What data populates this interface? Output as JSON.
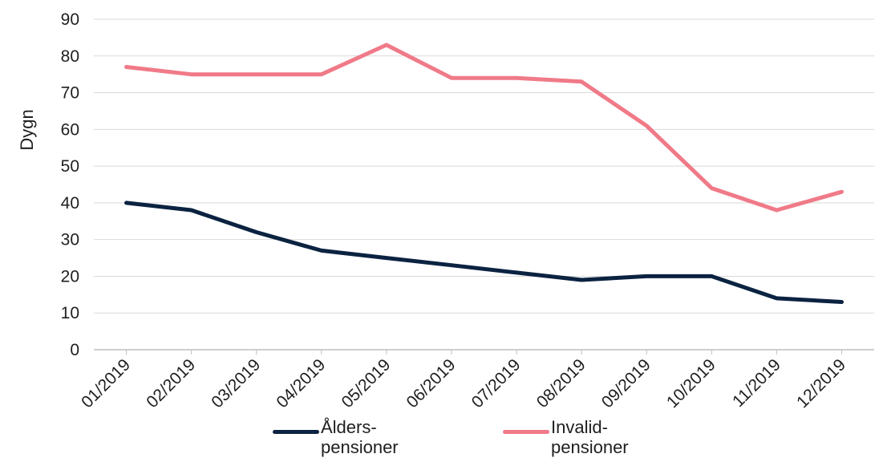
{
  "chart_data": {
    "type": "line",
    "ylabel": "Dygn",
    "xlabel": "",
    "ylim": [
      0,
      90
    ],
    "yticks": [
      0,
      10,
      20,
      30,
      40,
      50,
      60,
      70,
      80,
      90
    ],
    "grid": true,
    "legend_position": "bottom",
    "categories": [
      "01/2019",
      "02/2019",
      "03/2019",
      "04/2019",
      "05/2019",
      "06/2019",
      "07/2019",
      "08/2019",
      "09/2019",
      "10/2019",
      "11/2019",
      "12/2019"
    ],
    "series": [
      {
        "name": "Ålders-\npensioner",
        "color": "#0b2341",
        "values": [
          40,
          38,
          32,
          27,
          25,
          23,
          21,
          19,
          20,
          20,
          14,
          13
        ]
      },
      {
        "name": "Invalid-\npensioner",
        "color": "#f07a88",
        "values": [
          77,
          75,
          75,
          75,
          83,
          74,
          74,
          73,
          61,
          44,
          38,
          43
        ]
      }
    ]
  }
}
